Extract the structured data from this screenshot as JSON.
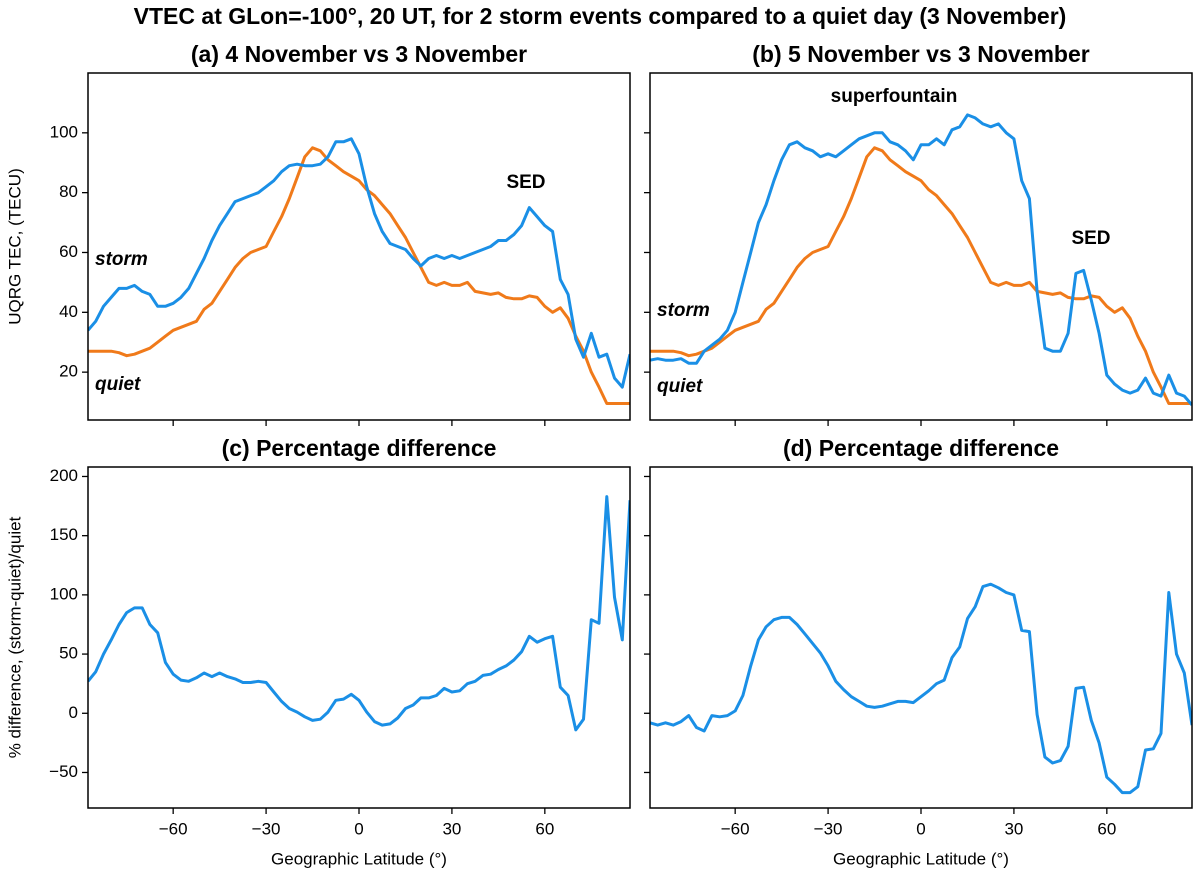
{
  "title": "VTEC at GLon=-100°, 20 UT, for 2 storm events compared to a quiet day (3 November)",
  "chart_data": [
    {
      "type": "line",
      "title": "(a) 4 November vs 3 November",
      "ylabel": "UQRG TEC, (TECU)",
      "x": [
        -87.5,
        -85,
        -82.5,
        -80,
        -77.5,
        -75,
        -72.5,
        -70,
        -67.5,
        -65,
        -62.5,
        -60,
        -57.5,
        -55,
        -52.5,
        -50,
        -47.5,
        -45,
        -42.5,
        -40,
        -37.5,
        -35,
        -32.5,
        -30,
        -27.5,
        -25,
        -22.5,
        -20,
        -17.5,
        -15,
        -12.5,
        -10,
        -7.5,
        -5,
        -2.5,
        0,
        2.5,
        5,
        7.5,
        10,
        12.5,
        15,
        17.5,
        20,
        22.5,
        25,
        27.5,
        30,
        32.5,
        35,
        37.5,
        40,
        42.5,
        45,
        47.5,
        50,
        52.5,
        55,
        57.5,
        60,
        62.5,
        65,
        67.5,
        70,
        72.5,
        75,
        77.5,
        80,
        82.5,
        85,
        87.5
      ],
      "series": [
        {
          "name": "quiet",
          "color": "#f07a1a",
          "values": [
            27,
            27,
            27,
            27,
            26.5,
            25.5,
            26,
            27,
            28,
            30,
            32,
            34,
            35,
            36,
            37,
            41,
            43,
            47,
            51,
            55,
            58,
            60,
            61,
            62,
            67,
            72,
            78,
            85,
            92,
            95,
            94,
            91,
            89,
            87,
            85.5,
            84,
            81,
            79,
            76,
            73,
            69,
            65,
            60,
            55,
            50,
            49,
            50,
            49,
            49,
            50,
            47,
            46.5,
            46,
            46.5,
            45,
            44.5,
            44.5,
            45.5,
            45,
            42,
            40,
            41.5,
            38,
            32,
            27,
            20,
            15,
            9.5,
            9.5,
            9.5,
            9.5
          ]
        },
        {
          "name": "storm",
          "color": "#1a8fe6",
          "values": [
            34,
            37,
            42,
            45,
            48,
            48,
            49,
            47,
            46,
            42,
            42,
            43,
            45,
            48,
            53,
            58,
            64,
            69,
            73,
            77,
            78,
            79,
            80,
            82,
            84,
            87,
            89,
            89.5,
            89,
            89,
            89.5,
            92,
            97,
            97,
            98,
            93,
            82,
            73,
            67,
            63,
            62,
            61,
            58,
            55.5,
            58,
            59,
            58,
            59,
            58,
            59,
            60,
            61,
            62,
            64,
            64,
            66,
            69,
            75,
            72,
            69,
            67,
            51,
            46,
            31,
            25,
            33,
            25,
            26,
            18,
            15,
            26
          ]
        }
      ],
      "annotations": [
        {
          "text": "SED",
          "color": "#1a8fe6"
        }
      ],
      "xlim": [
        -87.5,
        87.5
      ],
      "ylim": [
        4,
        120
      ],
      "xticks": [
        {
          "value": -60,
          "label": "−60"
        },
        {
          "value": -30,
          "label": "−30"
        },
        0,
        30,
        60
      ],
      "yticks": [
        20,
        40,
        60,
        80,
        100
      ],
      "show_xtick_labels": false,
      "show_ytick_labels": true
    },
    {
      "type": "line",
      "title": "(b) 5 November vs 3 November",
      "x": [
        -87.5,
        -85,
        -82.5,
        -80,
        -77.5,
        -75,
        -72.5,
        -70,
        -67.5,
        -65,
        -62.5,
        -60,
        -57.5,
        -55,
        -52.5,
        -50,
        -47.5,
        -45,
        -42.5,
        -40,
        -37.5,
        -35,
        -32.5,
        -30,
        -27.5,
        -25,
        -22.5,
        -20,
        -17.5,
        -15,
        -12.5,
        -10,
        -7.5,
        -5,
        -2.5,
        0,
        2.5,
        5,
        7.5,
        10,
        12.5,
        15,
        17.5,
        20,
        22.5,
        25,
        27.5,
        30,
        32.5,
        35,
        37.5,
        40,
        42.5,
        45,
        47.5,
        50,
        52.5,
        55,
        57.5,
        60,
        62.5,
        65,
        67.5,
        70,
        72.5,
        75,
        77.5,
        80,
        82.5,
        85,
        87.5
      ],
      "series": [
        {
          "name": "quiet",
          "color": "#f07a1a",
          "values": [
            27,
            27,
            27,
            27,
            26.5,
            25.5,
            26,
            27,
            28,
            30,
            32,
            34,
            35,
            36,
            37,
            41,
            43,
            47,
            51,
            55,
            58,
            60,
            61,
            62,
            67,
            72,
            78,
            85,
            92,
            95,
            94,
            91,
            89,
            87,
            85.5,
            84,
            81,
            79,
            76,
            73,
            69,
            65,
            60,
            55,
            50,
            49,
            50,
            49,
            49,
            50,
            47,
            46.5,
            46,
            46.5,
            45,
            44.5,
            44.5,
            45.5,
            45,
            42,
            40,
            41.5,
            38,
            32,
            27,
            20,
            15,
            9.5,
            9.5,
            9.5,
            9.5
          ]
        },
        {
          "name": "storm",
          "color": "#1a8fe6",
          "values": [
            24,
            24.5,
            24,
            24,
            24.5,
            23,
            23,
            27,
            29,
            31,
            34,
            40,
            50,
            60,
            70,
            76,
            84,
            91,
            96,
            97,
            95,
            94,
            92,
            93,
            92,
            94,
            96,
            98,
            99,
            100,
            100,
            97,
            96,
            94,
            91,
            96,
            96,
            98,
            96,
            101,
            102,
            106,
            105,
            103,
            102,
            103,
            100,
            98,
            84,
            78,
            47,
            28,
            27,
            27,
            33,
            53,
            54,
            44,
            33,
            19,
            16,
            14,
            13,
            14,
            18,
            13,
            12,
            19,
            13,
            12,
            9
          ]
        }
      ],
      "annotations": [
        {
          "text": "superfountain",
          "color": "#1a8fe6"
        },
        {
          "text": "SED",
          "color": "#1a8fe6"
        }
      ],
      "xlim": [
        -87.5,
        87.5
      ],
      "ylim": [
        4,
        120
      ],
      "xticks": [
        {
          "value": -60,
          "label": "−60"
        },
        {
          "value": -30,
          "label": "−30"
        },
        0,
        30,
        60
      ],
      "yticks": [
        20,
        40,
        60,
        80,
        100
      ],
      "show_xtick_labels": false,
      "show_ytick_labels": false
    },
    {
      "type": "line",
      "title": "(c) Percentage difference",
      "ylabel": "% difference, (storm-quiet)/quiet",
      "xlabel": "Geographic Latitude (°)",
      "x": [
        -87.5,
        -85,
        -82.5,
        -80,
        -77.5,
        -75,
        -72.5,
        -70,
        -67.5,
        -65,
        -62.5,
        -60,
        -57.5,
        -55,
        -52.5,
        -50,
        -47.5,
        -45,
        -42.5,
        -40,
        -37.5,
        -35,
        -32.5,
        -30,
        -27.5,
        -25,
        -22.5,
        -20,
        -17.5,
        -15,
        -12.5,
        -10,
        -7.5,
        -5,
        -2.5,
        0,
        2.5,
        5,
        7.5,
        10,
        12.5,
        15,
        17.5,
        20,
        22.5,
        25,
        27.5,
        30,
        32.5,
        35,
        37.5,
        40,
        42.5,
        45,
        47.5,
        50,
        52.5,
        55,
        57.5,
        60,
        62.5,
        65,
        67.5,
        70,
        72.5,
        75,
        77.5,
        80,
        82.5,
        85,
        87.5
      ],
      "series": [
        {
          "color": "#1a8fe6",
          "values": [
            27,
            35,
            50,
            62,
            75,
            85,
            89,
            89,
            75,
            68,
            43,
            33,
            28,
            27,
            30,
            34,
            31,
            34,
            31,
            29,
            26,
            26,
            27,
            26,
            18,
            10,
            4,
            1,
            -3,
            -6,
            -5,
            1,
            11,
            12,
            16,
            11,
            1,
            -7,
            -10,
            -9,
            -4,
            4,
            7,
            13,
            13,
            15,
            21,
            18,
            19,
            25,
            27,
            32,
            33,
            37,
            40,
            45,
            52,
            65,
            60,
            63,
            65,
            22,
            15,
            -14,
            -5,
            79,
            76,
            183,
            98,
            62,
            180
          ]
        }
      ],
      "xlim": [
        -87.5,
        87.5
      ],
      "ylim": [
        -80,
        208
      ],
      "xticks": [
        {
          "value": -60,
          "label": "−60"
        },
        {
          "value": -30,
          "label": "−30"
        },
        0,
        30,
        60
      ],
      "yticks": [
        {
          "value": -50,
          "label": "−50"
        },
        0,
        50,
        100,
        150,
        200
      ],
      "show_xtick_labels": true,
      "show_ytick_labels": true
    },
    {
      "type": "line",
      "title": "(d) Percentage difference",
      "xlabel": "Geographic Latitude (°)",
      "x": [
        -87.5,
        -85,
        -82.5,
        -80,
        -77.5,
        -75,
        -72.5,
        -70,
        -67.5,
        -65,
        -62.5,
        -60,
        -57.5,
        -55,
        -52.5,
        -50,
        -47.5,
        -45,
        -42.5,
        -40,
        -37.5,
        -35,
        -32.5,
        -30,
        -27.5,
        -25,
        -22.5,
        -20,
        -17.5,
        -15,
        -12.5,
        -10,
        -7.5,
        -5,
        -2.5,
        0,
        2.5,
        5,
        7.5,
        10,
        12.5,
        15,
        17.5,
        20,
        22.5,
        25,
        27.5,
        30,
        32.5,
        35,
        37.5,
        40,
        42.5,
        45,
        47.5,
        50,
        52.5,
        55,
        57.5,
        60,
        62.5,
        65,
        67.5,
        70,
        72.5,
        75,
        77.5,
        80,
        82.5,
        85,
        87.5
      ],
      "series": [
        {
          "color": "#1a8fe6",
          "values": [
            -8,
            -10,
            -8,
            -10,
            -7,
            -2,
            -12,
            -15,
            -2,
            -3,
            -2,
            2,
            15,
            40,
            62,
            73,
            79,
            81,
            81,
            75,
            67,
            59,
            51,
            40,
            27,
            20,
            14,
            10,
            6,
            5,
            6,
            8,
            10,
            10,
            9,
            14,
            19,
            25,
            28,
            47,
            56,
            80,
            90,
            107,
            109,
            106,
            102,
            100,
            70,
            69,
            -1,
            -37,
            -42,
            -40,
            -28,
            21,
            22,
            -6,
            -25,
            -54,
            -60,
            -67,
            -67,
            -62,
            -31,
            -30,
            -17,
            102,
            50,
            34,
            -10
          ]
        }
      ],
      "xlim": [
        -87.5,
        87.5
      ],
      "ylim": [
        -80,
        208
      ],
      "xticks": [
        {
          "value": -60,
          "label": "−60"
        },
        {
          "value": -30,
          "label": "−30"
        },
        0,
        30,
        60
      ],
      "yticks": [
        {
          "value": -50,
          "label": "−50"
        },
        0,
        50,
        100,
        150,
        200
      ],
      "show_xtick_labels": true,
      "show_ytick_labels": false
    }
  ]
}
